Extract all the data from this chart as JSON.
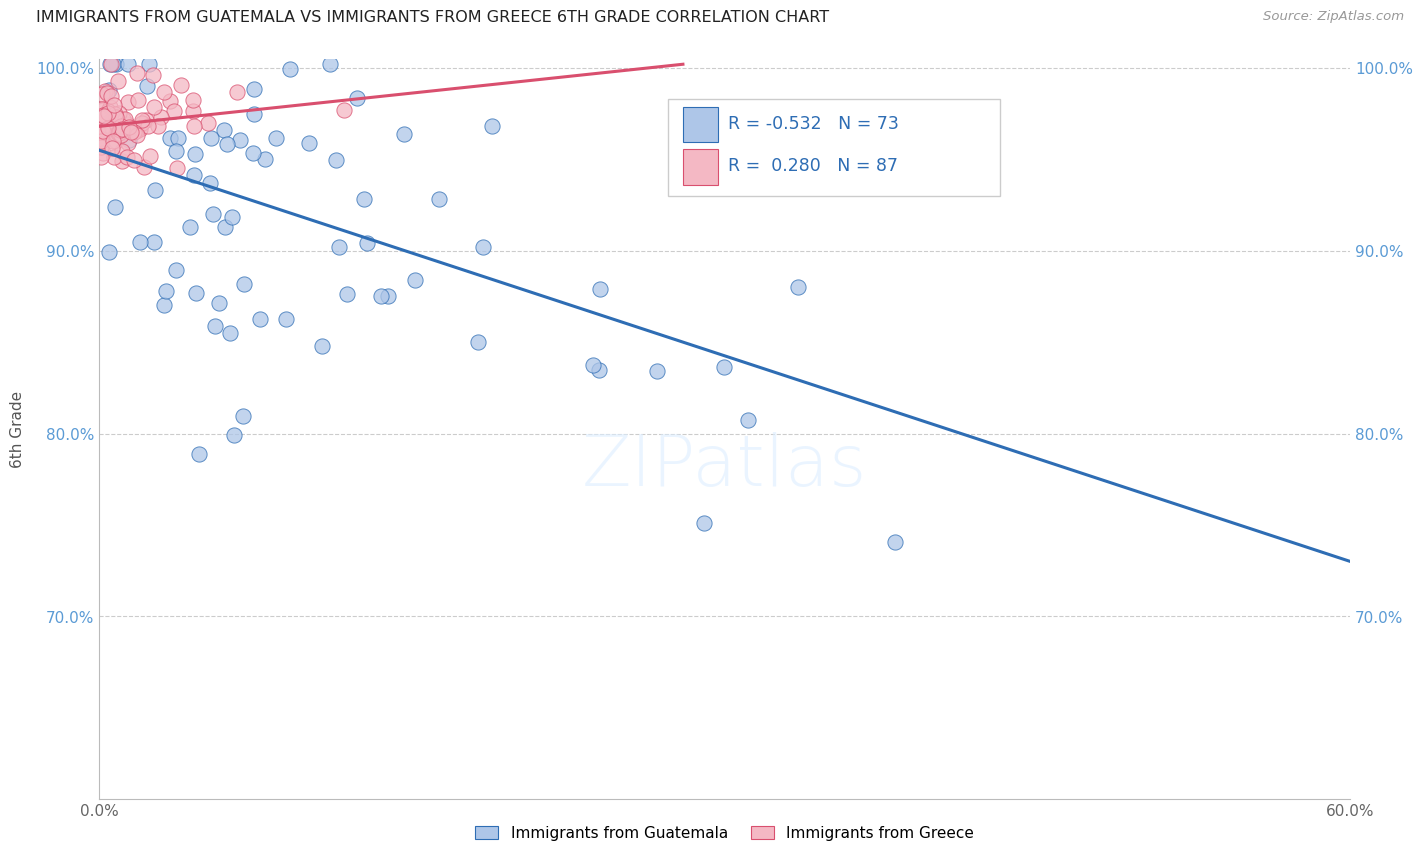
{
  "title": "IMMIGRANTS FROM GUATEMALA VS IMMIGRANTS FROM GREECE 6TH GRADE CORRELATION CHART",
  "source": "Source: ZipAtlas.com",
  "ylabel": "6th Grade",
  "xlim": [
    0.0,
    0.6
  ],
  "ylim": [
    0.6,
    1.005
  ],
  "xticks": [
    0.0,
    0.1,
    0.2,
    0.3,
    0.4,
    0.5,
    0.6
  ],
  "yticks": [
    0.7,
    0.8,
    0.9,
    1.0
  ],
  "ytick_labels": [
    "70.0%",
    "80.0%",
    "90.0%",
    "100.0%"
  ],
  "xtick_labels": [
    "0.0%",
    "",
    "",
    "",
    "",
    "",
    "60.0%"
  ],
  "legend_label1": "Immigrants from Guatemala",
  "legend_label2": "Immigrants from Greece",
  "r1": -0.532,
  "n1": 73,
  "r2": 0.28,
  "n2": 87,
  "color_blue": "#aec6e8",
  "color_pink": "#f4b8c4",
  "line_blue": "#2e6db4",
  "line_pink": "#d94f6e",
  "watermark": "ZIPatlas",
  "blue_line_x": [
    0.0,
    0.6
  ],
  "blue_line_y": [
    0.955,
    0.73
  ],
  "pink_line_x": [
    0.0,
    0.28
  ],
  "pink_line_y": [
    0.968,
    1.002
  ]
}
